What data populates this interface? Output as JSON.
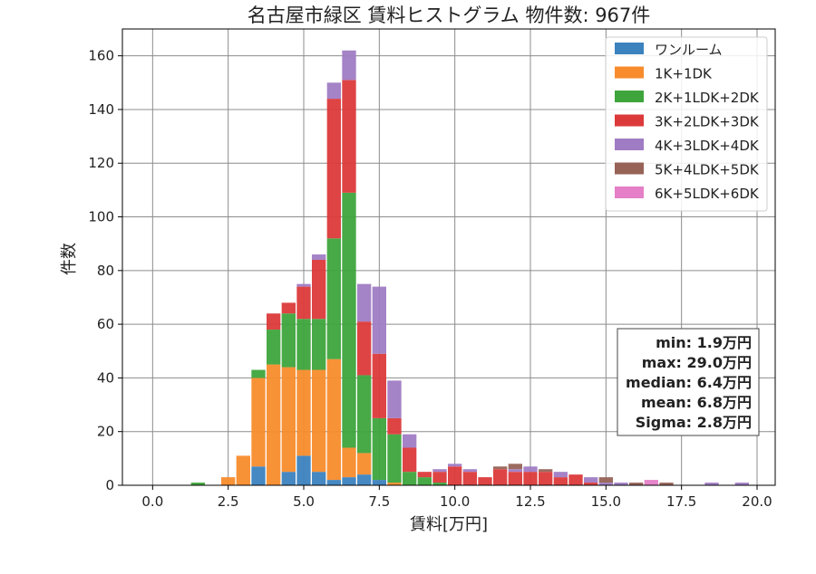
{
  "chart_data": {
    "type": "bar",
    "stacked": true,
    "title": "名古屋市緑区 賃料ヒストグラム 物件数: 967件",
    "xlabel": "賃料[万円]",
    "ylabel": "件数",
    "xlim": [
      -1.0,
      20.6
    ],
    "ylim": [
      0,
      170
    ],
    "grid": true,
    "legend_position": "top-right",
    "bin_width": 0.5,
    "x": [
      1.5,
      2.5,
      3.0,
      3.5,
      4.0,
      4.5,
      5.0,
      5.5,
      6.0,
      6.5,
      7.0,
      7.5,
      8.0,
      8.5,
      9.0,
      9.5,
      10.0,
      10.5,
      11.0,
      11.5,
      12.0,
      12.5,
      13.0,
      13.5,
      14.0,
      14.5,
      15.0,
      15.5,
      16.0,
      16.5,
      17.0,
      18.5,
      19.5
    ],
    "series": [
      {
        "name": "ワンルーム",
        "color": "#3b82bf",
        "values": [
          0,
          0,
          0,
          7,
          0,
          5,
          11,
          5,
          2,
          3,
          4,
          2,
          0,
          0,
          0,
          0,
          0,
          0,
          0,
          0,
          0,
          0,
          0,
          0,
          0,
          0,
          0,
          0,
          0,
          0,
          0,
          0,
          0
        ]
      },
      {
        "name": "1K+1DK",
        "color": "#f88c2c",
        "values": [
          0,
          3,
          11,
          33,
          45,
          39,
          32,
          38,
          45,
          11,
          8,
          0,
          1,
          0,
          0,
          0,
          0,
          0,
          0,
          0,
          0,
          0,
          0,
          0,
          0,
          0,
          0,
          0,
          0,
          0,
          0,
          0,
          0
        ]
      },
      {
        "name": "2K+1LDK+2DK",
        "color": "#3ea53c",
        "values": [
          1,
          0,
          0,
          3,
          13,
          20,
          19,
          19,
          45,
          95,
          29,
          23,
          18,
          5,
          3,
          1,
          0,
          0,
          0,
          0,
          0,
          0,
          0,
          0,
          0,
          0,
          0,
          0,
          0,
          0,
          0,
          0,
          0
        ]
      },
      {
        "name": "3K+2LDK+3DK",
        "color": "#dc3a3a",
        "values": [
          0,
          0,
          0,
          0,
          6,
          4,
          12,
          22,
          52,
          42,
          20,
          24,
          6,
          9,
          2,
          4,
          7,
          5,
          3,
          6,
          5,
          5,
          5,
          3,
          4,
          1,
          0,
          0,
          0,
          0,
          0,
          0,
          0
        ]
      },
      {
        "name": "4K+3LDK+4DK",
        "color": "#a07cc4",
        "values": [
          0,
          0,
          0,
          0,
          0,
          0,
          1,
          2,
          6,
          11,
          14,
          25,
          14,
          5,
          0,
          1,
          1,
          1,
          0,
          0,
          1,
          2,
          0,
          2,
          0,
          2,
          1,
          1,
          0,
          0,
          0,
          1,
          1
        ]
      },
      {
        "name": "5K+4LDK+5DK",
        "color": "#976357",
        "values": [
          0,
          0,
          0,
          0,
          0,
          0,
          0,
          0,
          0,
          0,
          0,
          0,
          0,
          0,
          0,
          0,
          0,
          0,
          0,
          1,
          2,
          0,
          1,
          0,
          0,
          0,
          2,
          0,
          1,
          0,
          1,
          0,
          0
        ]
      },
      {
        "name": "6K+5LDK+6DK",
        "color": "#e57fc7",
        "values": [
          0,
          0,
          0,
          0,
          0,
          0,
          0,
          0,
          0,
          0,
          0,
          0,
          0,
          0,
          0,
          0,
          0,
          0,
          0,
          0,
          0,
          0,
          0,
          0,
          0,
          0,
          0,
          0,
          0,
          2,
          0,
          0,
          0
        ]
      }
    ],
    "xticks": [
      0.0,
      2.5,
      5.0,
      7.5,
      10.0,
      12.5,
      15.0,
      17.5,
      20.0
    ],
    "xtick_labels": [
      "0.0",
      "2.5",
      "5.0",
      "7.5",
      "10.0",
      "12.5",
      "15.0",
      "17.5",
      "20.0"
    ],
    "yticks": [
      0,
      20,
      40,
      60,
      80,
      100,
      120,
      140,
      160
    ],
    "ytick_labels": [
      "0",
      "20",
      "40",
      "60",
      "80",
      "100",
      "120",
      "140",
      "160"
    ],
    "stats": [
      "min: 1.9万円",
      "max: 29.0万円",
      "median: 6.4万円",
      "mean: 6.8万円",
      "Sigma: 2.8万円"
    ]
  }
}
